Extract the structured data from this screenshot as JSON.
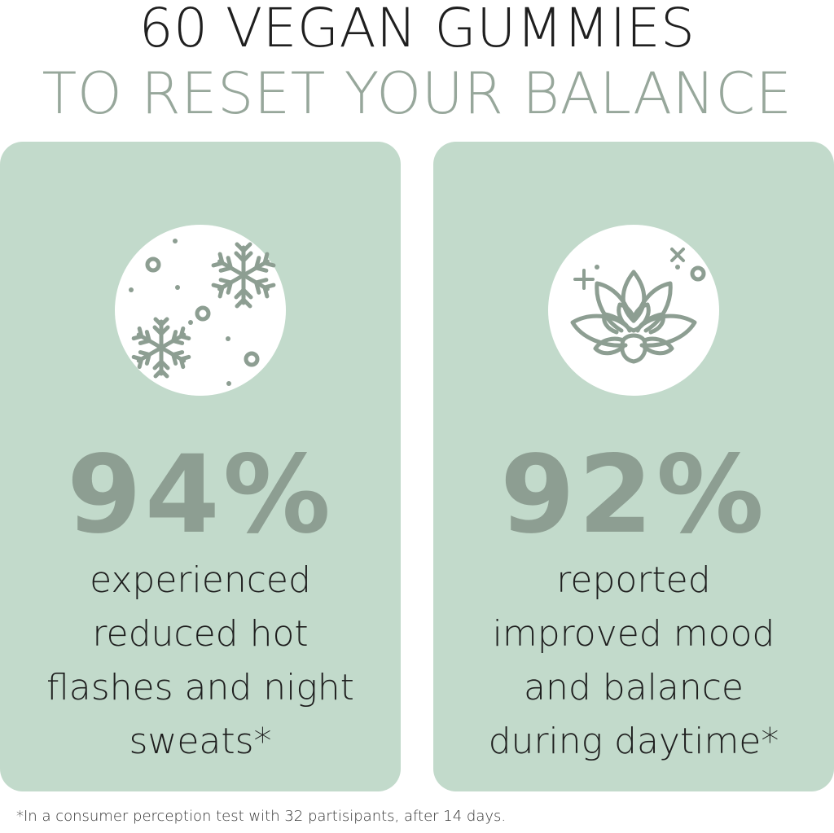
{
  "headline": {
    "line1": "60 VEGAN GUMMIES",
    "line2": "TO RESET YOUR BALANCE"
  },
  "colors": {
    "card_background": "#c2dacb",
    "accent_gray_green": "#8d9e92",
    "headline_gray_green": "#97a79b",
    "text_dark": "#1e1e1e"
  },
  "cards": [
    {
      "icon": "snowflake-icon",
      "value": "94%",
      "description_lines": [
        "experienced",
        "reduced hot",
        "flashes and night",
        "sweats*"
      ]
    },
    {
      "icon": "lotus-icon",
      "value": "92%",
      "description_lines": [
        "reported",
        "improved mood",
        "and balance",
        "during daytime*"
      ]
    }
  ],
  "footnote": "*In a consumer perception test with 32 partisipants, after 14 days."
}
